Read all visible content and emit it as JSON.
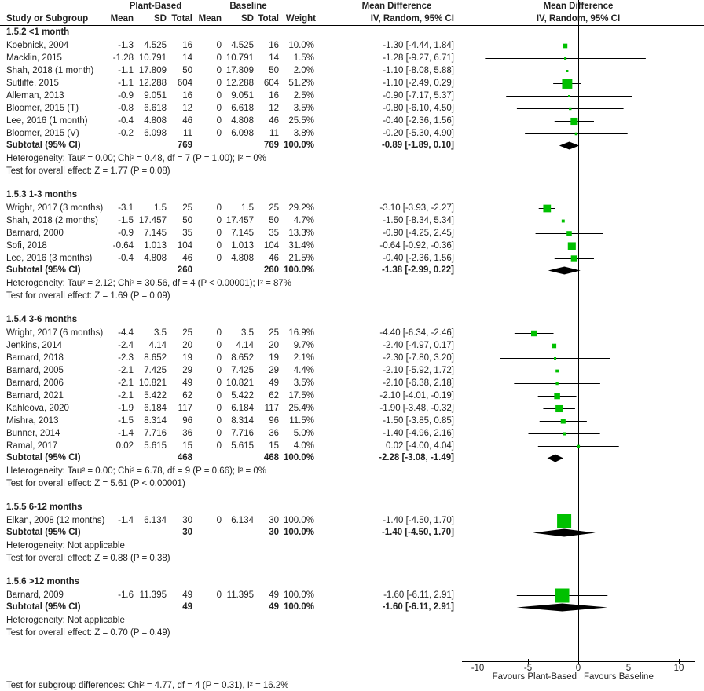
{
  "header": {
    "study_col": "Study or Subgroup",
    "group1": "Plant-Based",
    "group2": "Baseline",
    "mean": "Mean",
    "sd": "SD",
    "total": "Total",
    "weight": "Weight",
    "effect_title": "Mean Difference",
    "effect_method": "IV, Random, 95% CI",
    "plot_title": "Mean Difference",
    "plot_method": "IV, Random, 95% CI"
  },
  "colors": {
    "square": "#00c000",
    "diamond": "#000000",
    "text": "#222222"
  },
  "chart_data": {
    "type": "forest",
    "xlim": [
      -10,
      10
    ],
    "xticks": [
      "-10",
      "-5",
      "0",
      "5",
      "10"
    ],
    "xtick_values": [
      -10,
      -5,
      0,
      5,
      10
    ],
    "favours_left": "Favours Plant-Based",
    "favours_right": "Favours Baseline",
    "subgroups": [
      {
        "heading": "1.5.2 <1 month",
        "studies": [
          {
            "name": "Koebnick, 2004",
            "m1": "-1.3",
            "sd1": "4.525",
            "n1": "16",
            "m2": "0",
            "sd2": "4.525",
            "n2": "16",
            "weight": "10.0%",
            "ci": "-1.30 [-4.44, 1.84]",
            "md": -1.3,
            "lo": -4.44,
            "hi": 1.84,
            "w": 10.0
          },
          {
            "name": "Macklin, 2015",
            "m1": "-1.28",
            "sd1": "10.791",
            "n1": "14",
            "m2": "0",
            "sd2": "10.791",
            "n2": "14",
            "weight": "1.5%",
            "ci": "-1.28 [-9.27, 6.71]",
            "md": -1.28,
            "lo": -9.27,
            "hi": 6.71,
            "w": 1.5
          },
          {
            "name": "Shah, 2018 (1 month)",
            "m1": "-1.1",
            "sd1": "17.809",
            "n1": "50",
            "m2": "0",
            "sd2": "17.809",
            "n2": "50",
            "weight": "2.0%",
            "ci": "-1.10 [-8.08, 5.88]",
            "md": -1.1,
            "lo": -8.08,
            "hi": 5.88,
            "w": 2.0
          },
          {
            "name": "Sutliffe, 2015",
            "m1": "-1.1",
            "sd1": "12.288",
            "n1": "604",
            "m2": "0",
            "sd2": "12.288",
            "n2": "604",
            "weight": "51.2%",
            "ci": "-1.10 [-2.49, 0.29]",
            "md": -1.1,
            "lo": -2.49,
            "hi": 0.29,
            "w": 51.2
          },
          {
            "name": "Alleman, 2013",
            "m1": "-0.9",
            "sd1": "9.051",
            "n1": "16",
            "m2": "0",
            "sd2": "9.051",
            "n2": "16",
            "weight": "2.5%",
            "ci": "-0.90 [-7.17, 5.37]",
            "md": -0.9,
            "lo": -7.17,
            "hi": 5.37,
            "w": 2.5
          },
          {
            "name": "Bloomer, 2015 (T)",
            "m1": "-0.8",
            "sd1": "6.618",
            "n1": "12",
            "m2": "0",
            "sd2": "6.618",
            "n2": "12",
            "weight": "3.5%",
            "ci": "-0.80 [-6.10, 4.50]",
            "md": -0.8,
            "lo": -6.1,
            "hi": 4.5,
            "w": 3.5
          },
          {
            "name": "Lee, 2016 (1 month)",
            "m1": "-0.4",
            "sd1": "4.808",
            "n1": "46",
            "m2": "0",
            "sd2": "4.808",
            "n2": "46",
            "weight": "25.5%",
            "ci": "-0.40 [-2.36, 1.56]",
            "md": -0.4,
            "lo": -2.36,
            "hi": 1.56,
            "w": 25.5
          },
          {
            "name": "Bloomer, 2015 (V)",
            "m1": "-0.2",
            "sd1": "6.098",
            "n1": "11",
            "m2": "0",
            "sd2": "6.098",
            "n2": "11",
            "weight": "3.8%",
            "ci": "-0.20 [-5.30, 4.90]",
            "md": -0.2,
            "lo": -5.3,
            "hi": 4.9,
            "w": 3.8
          }
        ],
        "subtotal": {
          "label": "Subtotal (95% CI)",
          "n1": "769",
          "n2": "769",
          "weight": "100.0%",
          "ci": "-0.89 [-1.89, 0.10]",
          "md": -0.89,
          "lo": -1.89,
          "hi": 0.1
        },
        "heterogeneity": "Heterogeneity: Tau² = 0.00; Chi² = 0.48, df = 7 (P = 1.00); I² = 0%",
        "overall": "Test for overall effect: Z = 1.77 (P = 0.08)"
      },
      {
        "heading": "1.5.3 1-3 months",
        "studies": [
          {
            "name": "Wright, 2017 (3 months)",
            "m1": "-3.1",
            "sd1": "1.5",
            "n1": "25",
            "m2": "0",
            "sd2": "1.5",
            "n2": "25",
            "weight": "29.2%",
            "ci": "-3.10 [-3.93, -2.27]",
            "md": -3.1,
            "lo": -3.93,
            "hi": -2.27,
            "w": 29.2
          },
          {
            "name": "Shah, 2018 (2 months)",
            "m1": "-1.5",
            "sd1": "17.457",
            "n1": "50",
            "m2": "0",
            "sd2": "17.457",
            "n2": "50",
            "weight": "4.7%",
            "ci": "-1.50 [-8.34, 5.34]",
            "md": -1.5,
            "lo": -8.34,
            "hi": 5.34,
            "w": 4.7
          },
          {
            "name": "Barnard, 2000",
            "m1": "-0.9",
            "sd1": "7.145",
            "n1": "35",
            "m2": "0",
            "sd2": "7.145",
            "n2": "35",
            "weight": "13.3%",
            "ci": "-0.90 [-4.25, 2.45]",
            "md": -0.9,
            "lo": -4.25,
            "hi": 2.45,
            "w": 13.3
          },
          {
            "name": "Sofi, 2018",
            "m1": "-0.64",
            "sd1": "1.013",
            "n1": "104",
            "m2": "0",
            "sd2": "1.013",
            "n2": "104",
            "weight": "31.4%",
            "ci": "-0.64 [-0.92, -0.36]",
            "md": -0.64,
            "lo": -0.92,
            "hi": -0.36,
            "w": 31.4
          },
          {
            "name": "Lee, 2016 (3 months)",
            "m1": "-0.4",
            "sd1": "4.808",
            "n1": "46",
            "m2": "0",
            "sd2": "4.808",
            "n2": "46",
            "weight": "21.5%",
            "ci": "-0.40 [-2.36, 1.56]",
            "md": -0.4,
            "lo": -2.36,
            "hi": 1.56,
            "w": 21.5
          }
        ],
        "subtotal": {
          "label": "Subtotal (95% CI)",
          "n1": "260",
          "n2": "260",
          "weight": "100.0%",
          "ci": "-1.38 [-2.99, 0.22]",
          "md": -1.38,
          "lo": -2.99,
          "hi": 0.22
        },
        "heterogeneity": "Heterogeneity: Tau² = 2.12; Chi² = 30.56, df = 4 (P < 0.00001); I² = 87%",
        "overall": "Test for overall effect: Z = 1.69 (P = 0.09)"
      },
      {
        "heading": "1.5.4 3-6 months",
        "studies": [
          {
            "name": "Wright, 2017 (6 months)",
            "m1": "-4.4",
            "sd1": "3.5",
            "n1": "25",
            "m2": "0",
            "sd2": "3.5",
            "n2": "25",
            "weight": "16.9%",
            "ci": "-4.40 [-6.34, -2.46]",
            "md": -4.4,
            "lo": -6.34,
            "hi": -2.46,
            "w": 16.9
          },
          {
            "name": "Jenkins, 2014",
            "m1": "-2.4",
            "sd1": "4.14",
            "n1": "20",
            "m2": "0",
            "sd2": "4.14",
            "n2": "20",
            "weight": "9.7%",
            "ci": "-2.40 [-4.97, 0.17]",
            "md": -2.4,
            "lo": -4.97,
            "hi": 0.17,
            "w": 9.7
          },
          {
            "name": "Barnard, 2018",
            "m1": "-2.3",
            "sd1": "8.652",
            "n1": "19",
            "m2": "0",
            "sd2": "8.652",
            "n2": "19",
            "weight": "2.1%",
            "ci": "-2.30 [-7.80, 3.20]",
            "md": -2.3,
            "lo": -7.8,
            "hi": 3.2,
            "w": 2.1
          },
          {
            "name": "Barnard, 2005",
            "m1": "-2.1",
            "sd1": "7.425",
            "n1": "29",
            "m2": "0",
            "sd2": "7.425",
            "n2": "29",
            "weight": "4.4%",
            "ci": "-2.10 [-5.92, 1.72]",
            "md": -2.1,
            "lo": -5.92,
            "hi": 1.72,
            "w": 4.4
          },
          {
            "name": "Barnard, 2006",
            "m1": "-2.1",
            "sd1": "10.821",
            "n1": "49",
            "m2": "0",
            "sd2": "10.821",
            "n2": "49",
            "weight": "3.5%",
            "ci": "-2.10 [-6.38, 2.18]",
            "md": -2.1,
            "lo": -6.38,
            "hi": 2.18,
            "w": 3.5
          },
          {
            "name": "Barnard, 2021",
            "m1": "-2.1",
            "sd1": "5.422",
            "n1": "62",
            "m2": "0",
            "sd2": "5.422",
            "n2": "62",
            "weight": "17.5%",
            "ci": "-2.10 [-4.01, -0.19]",
            "md": -2.1,
            "lo": -4.01,
            "hi": -0.19,
            "w": 17.5
          },
          {
            "name": "Kahleova, 2020",
            "m1": "-1.9",
            "sd1": "6.184",
            "n1": "117",
            "m2": "0",
            "sd2": "6.184",
            "n2": "117",
            "weight": "25.4%",
            "ci": "-1.90 [-3.48, -0.32]",
            "md": -1.9,
            "lo": -3.48,
            "hi": -0.32,
            "w": 25.4
          },
          {
            "name": "Mishra, 2013",
            "m1": "-1.5",
            "sd1": "8.314",
            "n1": "96",
            "m2": "0",
            "sd2": "8.314",
            "n2": "96",
            "weight": "11.5%",
            "ci": "-1.50 [-3.85, 0.85]",
            "md": -1.5,
            "lo": -3.85,
            "hi": 0.85,
            "w": 11.5
          },
          {
            "name": "Bunner, 2014",
            "m1": "-1.4",
            "sd1": "7.716",
            "n1": "36",
            "m2": "0",
            "sd2": "7.716",
            "n2": "36",
            "weight": "5.0%",
            "ci": "-1.40 [-4.96, 2.16]",
            "md": -1.4,
            "lo": -4.96,
            "hi": 2.16,
            "w": 5.0
          },
          {
            "name": "Ramal, 2017",
            "m1": "0.02",
            "sd1": "5.615",
            "n1": "15",
            "m2": "0",
            "sd2": "5.615",
            "n2": "15",
            "weight": "4.0%",
            "ci": "0.02 [-4.00, 4.04]",
            "md": 0.02,
            "lo": -4.0,
            "hi": 4.04,
            "w": 4.0
          }
        ],
        "subtotal": {
          "label": "Subtotal (95% CI)",
          "n1": "468",
          "n2": "468",
          "weight": "100.0%",
          "ci": "-2.28 [-3.08, -1.49]",
          "md": -2.28,
          "lo": -3.08,
          "hi": -1.49
        },
        "heterogeneity": "Heterogeneity: Tau² = 0.00; Chi² = 6.78, df = 9 (P = 0.66); I² = 0%",
        "overall": "Test for overall effect: Z = 5.61 (P < 0.00001)"
      },
      {
        "heading": "1.5.5 6-12 months",
        "studies": [
          {
            "name": "Elkan, 2008 (12 months)",
            "m1": "-1.4",
            "sd1": "6.134",
            "n1": "30",
            "m2": "0",
            "sd2": "6.134",
            "n2": "30",
            "weight": "100.0%",
            "ci": "-1.40 [-4.50, 1.70]",
            "md": -1.4,
            "lo": -4.5,
            "hi": 1.7,
            "w": 100.0
          }
        ],
        "subtotal": {
          "label": "Subtotal (95% CI)",
          "n1": "30",
          "n2": "30",
          "weight": "100.0%",
          "ci": "-1.40 [-4.50, 1.70]",
          "md": -1.4,
          "lo": -4.5,
          "hi": 1.7
        },
        "heterogeneity": "Heterogeneity: Not applicable",
        "overall": "Test for overall effect: Z = 0.88 (P = 0.38)"
      },
      {
        "heading": "1.5.6 >12 months",
        "studies": [
          {
            "name": "Barnard, 2009",
            "m1": "-1.6",
            "sd1": "11.395",
            "n1": "49",
            "m2": "0",
            "sd2": "11.395",
            "n2": "49",
            "weight": "100.0%",
            "ci": "-1.60 [-6.11, 2.91]",
            "md": -1.6,
            "lo": -6.11,
            "hi": 2.91,
            "w": 100.0
          }
        ],
        "subtotal": {
          "label": "Subtotal (95% CI)",
          "n1": "49",
          "n2": "49",
          "weight": "100.0%",
          "ci": "-1.60 [-6.11, 2.91]",
          "md": -1.6,
          "lo": -6.11,
          "hi": 2.91
        },
        "heterogeneity": "Heterogeneity: Not applicable",
        "overall": "Test for overall effect: Z = 0.70 (P = 0.49)"
      }
    ],
    "subgroup_test": "Test for subgroup differences: Chi² = 4.77, df = 4 (P = 0.31), I² = 16.2%"
  }
}
